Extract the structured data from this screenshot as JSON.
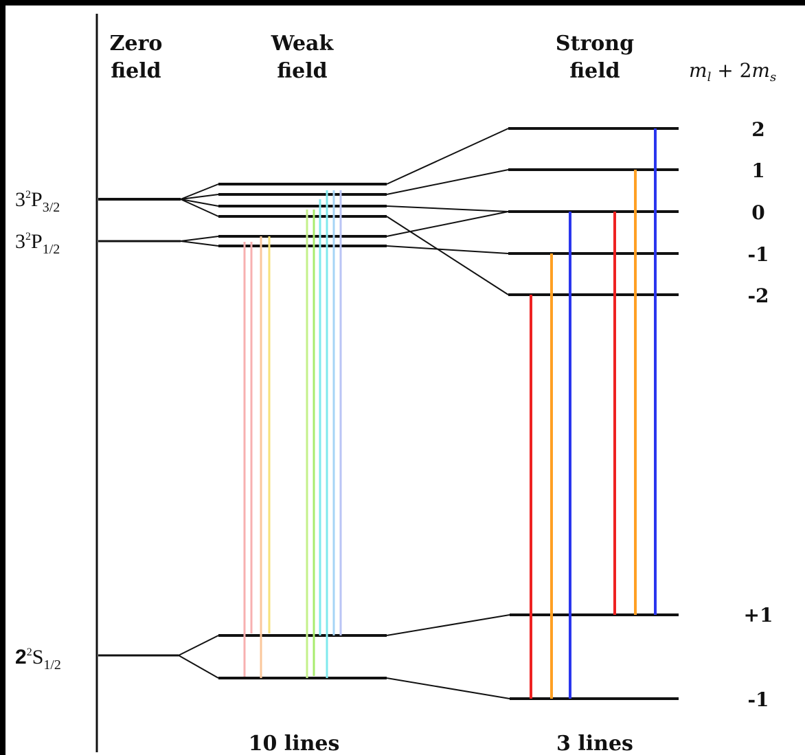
{
  "columns": {
    "zero_line1": "Zero",
    "zero_line2": "field",
    "weak_line1": "Weak",
    "weak_line2": "field",
    "strong_line1": "Strong",
    "strong_line2": "field",
    "ml_label": "m",
    "ml_sub": "l",
    "ml_plus": " + 2",
    "ms_label": "m",
    "ms_sub": "s"
  },
  "terms": {
    "p32": {
      "n": "3",
      "mult": "2",
      "letter": "P",
      "j": "3/2"
    },
    "p12": {
      "n": "3",
      "mult": "2",
      "letter": "P",
      "j": "1/2"
    },
    "s12": {
      "n": "2",
      "mult": "2",
      "letter": "S",
      "j": "1/2"
    }
  },
  "upper_values": [
    "2",
    "1",
    "0",
    "-1",
    "-2"
  ],
  "lower_values": [
    "+1",
    "-1"
  ],
  "footer": {
    "weak_count": "10 lines",
    "strong_count": "3 lines"
  },
  "colors": {
    "level": "#111111",
    "axis": "#111111",
    "red": "#ee2222",
    "orange": "#ffa023",
    "blue": "#2a36ee",
    "weak_red": "#f7b0b0",
    "weak_peach": "#fbc79b",
    "weak_yellow": "#f7e27a",
    "weak_green": "#a8ec6e",
    "weak_lime": "#c3f08a",
    "weak_cyan": "#7fe9ee",
    "weak_skyblue": "#a6d4f6",
    "weak_lavender": "#bac4f5"
  }
}
